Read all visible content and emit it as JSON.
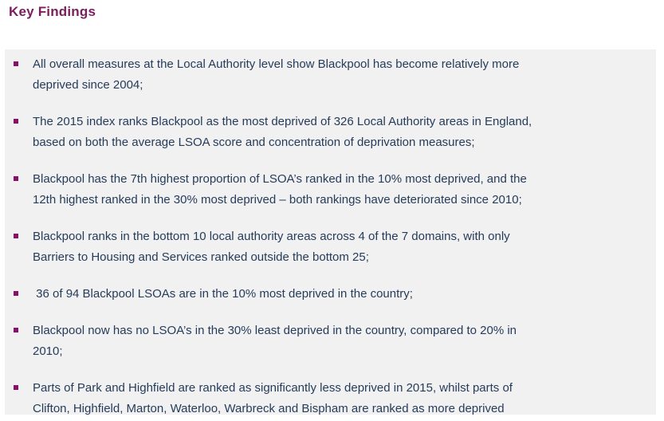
{
  "page": {
    "title": "Key Findings",
    "colors": {
      "heading": "#7b1e5b",
      "bullet": "#8b0e6b",
      "body_text": "#253c5b",
      "panel_background": "#f1f1f1",
      "page_background": "#ffffff"
    }
  },
  "findings": {
    "items": [
      "All overall measures at the Local Authority level show Blackpool has become relatively more\ndeprived since 2004;",
      "The 2015 index ranks Blackpool as the most deprived of 326 Local Authority areas in England,\nbased on both the average LSOA score and concentration of deprivation measures;",
      "Blackpool has the 7th highest proportion of LSOA’s ranked in the 10% most deprived, and the\n12th highest ranked in the 30% most deprived – both rankings have deteriorated since 2010;",
      "Blackpool ranks in the bottom 10 local authority areas across 4 of the 7 domains, with only\nBarriers to Housing and Services ranked outside the bottom 25;",
      " 36 of 94 Blackpool LSOAs are in the 10% most deprived in the country;",
      "Blackpool now has no LSOA’s in the 30% least deprived in the country, compared to 20% in\n2010;",
      "Parts of Park and Highfield are ranked as significantly less deprived in 2015, whilst parts of\nClifton, Highfield, Marton, Waterloo, Warbreck and Bispham are ranked as more deprived"
    ]
  }
}
